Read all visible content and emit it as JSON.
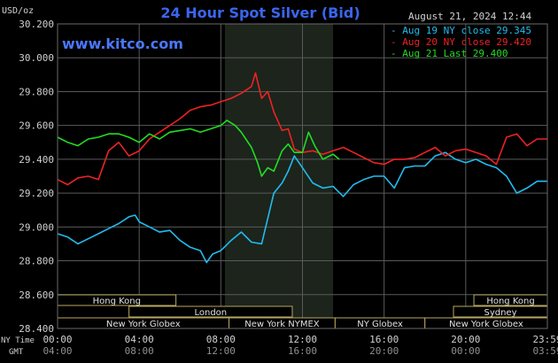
{
  "chart_data": {
    "type": "line",
    "title": "24 Hour Spot Silver (Bid)",
    "ylabel": "USD/oz",
    "date_label": "August 21, 2024 12:44",
    "watermark": "www.kitco.com",
    "ylim": [
      28.4,
      30.2
    ],
    "y_ticks": [
      "28.400",
      "28.600",
      "28.800",
      "29.000",
      "29.200",
      "29.400",
      "29.600",
      "29.800",
      "30.000",
      "30.200"
    ],
    "x_range_hours": [
      0,
      24
    ],
    "x_tick_hours": [
      0,
      4,
      8,
      12,
      16,
      20,
      24
    ],
    "x_ticks_ny": [
      "00:00",
      "04:00",
      "08:00",
      "12:00",
      "16:00",
      "20:00",
      "23:59"
    ],
    "x_ticks_gmt": [
      "04:00",
      "08:00",
      "12:00",
      "16:00",
      "20:00",
      "00:00",
      "03:59"
    ],
    "x_row_labels": {
      "ny": "NY Time",
      "gmt": "GMT"
    },
    "highlight_hours": [
      8.2,
      13.5
    ],
    "series": [
      {
        "name": "Aug 19 NY close 29.345",
        "color": "#22bbee",
        "points": [
          [
            0,
            28.96
          ],
          [
            0.5,
            28.94
          ],
          [
            1,
            28.9
          ],
          [
            1.5,
            28.93
          ],
          [
            2,
            28.96
          ],
          [
            2.5,
            28.99
          ],
          [
            3,
            29.02
          ],
          [
            3.5,
            29.06
          ],
          [
            3.8,
            29.07
          ],
          [
            4,
            29.03
          ],
          [
            4.5,
            29.0
          ],
          [
            5,
            28.97
          ],
          [
            5.5,
            28.98
          ],
          [
            6,
            28.92
          ],
          [
            6.5,
            28.88
          ],
          [
            7,
            28.86
          ],
          [
            7.3,
            28.79
          ],
          [
            7.6,
            28.84
          ],
          [
            8,
            28.86
          ],
          [
            8.5,
            28.92
          ],
          [
            9,
            28.97
          ],
          [
            9.5,
            28.91
          ],
          [
            10,
            28.9
          ],
          [
            10.3,
            29.05
          ],
          [
            10.6,
            29.2
          ],
          [
            11,
            29.26
          ],
          [
            11.3,
            29.33
          ],
          [
            11.6,
            29.42
          ],
          [
            12,
            29.35
          ],
          [
            12.5,
            29.26
          ],
          [
            13,
            29.23
          ],
          [
            13.5,
            29.24
          ],
          [
            14,
            29.18
          ],
          [
            14.5,
            29.25
          ],
          [
            15,
            29.28
          ],
          [
            15.5,
            29.3
          ],
          [
            16,
            29.3
          ],
          [
            16.5,
            29.23
          ],
          [
            17,
            29.35
          ],
          [
            17.5,
            29.36
          ],
          [
            18,
            29.36
          ],
          [
            18.5,
            29.42
          ],
          [
            19,
            29.44
          ],
          [
            19.5,
            29.4
          ],
          [
            20,
            29.38
          ],
          [
            20.5,
            29.4
          ],
          [
            21,
            29.37
          ],
          [
            21.5,
            29.35
          ],
          [
            22,
            29.3
          ],
          [
            22.5,
            29.2
          ],
          [
            23,
            29.23
          ],
          [
            23.5,
            29.27
          ],
          [
            24,
            29.27
          ]
        ]
      },
      {
        "name": "Aug 20 NY close 29.420",
        "color": "#ee2222",
        "points": [
          [
            0,
            29.28
          ],
          [
            0.5,
            29.25
          ],
          [
            1,
            29.29
          ],
          [
            1.5,
            29.3
          ],
          [
            2,
            29.28
          ],
          [
            2.5,
            29.45
          ],
          [
            3,
            29.5
          ],
          [
            3.5,
            29.42
          ],
          [
            4,
            29.45
          ],
          [
            4.5,
            29.52
          ],
          [
            5,
            29.56
          ],
          [
            5.5,
            29.6
          ],
          [
            6,
            29.64
          ],
          [
            6.5,
            29.69
          ],
          [
            7,
            29.71
          ],
          [
            7.5,
            29.72
          ],
          [
            8,
            29.74
          ],
          [
            8.5,
            29.76
          ],
          [
            9,
            29.79
          ],
          [
            9.5,
            29.83
          ],
          [
            9.7,
            29.91
          ],
          [
            10,
            29.76
          ],
          [
            10.3,
            29.8
          ],
          [
            10.6,
            29.68
          ],
          [
            11,
            29.57
          ],
          [
            11.3,
            29.58
          ],
          [
            11.6,
            29.46
          ],
          [
            12,
            29.44
          ],
          [
            12.5,
            29.45
          ],
          [
            13,
            29.43
          ],
          [
            13.5,
            29.45
          ],
          [
            14,
            29.47
          ],
          [
            14.5,
            29.44
          ],
          [
            15,
            29.41
          ],
          [
            15.5,
            29.38
          ],
          [
            16,
            29.37
          ],
          [
            16.5,
            29.4
          ],
          [
            17,
            29.4
          ],
          [
            17.5,
            29.41
          ],
          [
            18,
            29.44
          ],
          [
            18.5,
            29.47
          ],
          [
            19,
            29.42
          ],
          [
            19.5,
            29.45
          ],
          [
            20,
            29.46
          ],
          [
            20.5,
            29.44
          ],
          [
            21,
            29.42
          ],
          [
            21.5,
            29.37
          ],
          [
            22,
            29.53
          ],
          [
            22.5,
            29.55
          ],
          [
            23,
            29.48
          ],
          [
            23.5,
            29.52
          ],
          [
            24,
            29.52
          ]
        ]
      },
      {
        "name": "Aug 21 Last 29.400",
        "color": "#22dd22",
        "points": [
          [
            0,
            29.53
          ],
          [
            0.5,
            29.5
          ],
          [
            1,
            29.48
          ],
          [
            1.5,
            29.52
          ],
          [
            2,
            29.53
          ],
          [
            2.5,
            29.55
          ],
          [
            3,
            29.55
          ],
          [
            3.5,
            29.53
          ],
          [
            4,
            29.5
          ],
          [
            4.5,
            29.55
          ],
          [
            5,
            29.52
          ],
          [
            5.5,
            29.56
          ],
          [
            6,
            29.57
          ],
          [
            6.5,
            29.58
          ],
          [
            7,
            29.56
          ],
          [
            7.5,
            29.58
          ],
          [
            8,
            29.6
          ],
          [
            8.3,
            29.63
          ],
          [
            8.7,
            29.6
          ],
          [
            9,
            29.56
          ],
          [
            9.5,
            29.47
          ],
          [
            9.8,
            29.38
          ],
          [
            10,
            29.3
          ],
          [
            10.3,
            29.35
          ],
          [
            10.6,
            29.33
          ],
          [
            11,
            29.45
          ],
          [
            11.3,
            29.49
          ],
          [
            11.6,
            29.44
          ],
          [
            12,
            29.44
          ],
          [
            12.3,
            29.56
          ],
          [
            12.6,
            29.48
          ],
          [
            13,
            29.4
          ],
          [
            13.5,
            29.43
          ],
          [
            13.8,
            29.4
          ]
        ]
      }
    ],
    "session_bars": [
      {
        "label": "Hong Kong",
        "start": 0,
        "end": 5.8,
        "row": 0
      },
      {
        "label": "London",
        "start": 3.5,
        "end": 11.5,
        "row": 1
      },
      {
        "label": "New York Globex",
        "start": 0,
        "end": 8.4,
        "row": 2
      },
      {
        "label": "New York NYMEX",
        "start": 8.4,
        "end": 13.6,
        "row": 2
      },
      {
        "label": "NY Globex",
        "start": 13.6,
        "end": 18.0,
        "row": 2
      },
      {
        "label": "Hong Kong",
        "start": 20.4,
        "end": 24,
        "row": 0
      },
      {
        "label": "Sydney",
        "start": 19.4,
        "end": 24,
        "row": 1
      },
      {
        "label": "New York Globex",
        "start": 18.0,
        "end": 24,
        "row": 2
      }
    ],
    "colors": {
      "background": "#000000",
      "grid": "#5a5a5a",
      "highlight": "#1c241c",
      "title": "#3a66ee",
      "watermark": "#4a78ff",
      "text": "#d0d0d0",
      "session_fill": "#000000",
      "session_border": "#b8a860",
      "session_text": "#e0e0e0"
    }
  }
}
